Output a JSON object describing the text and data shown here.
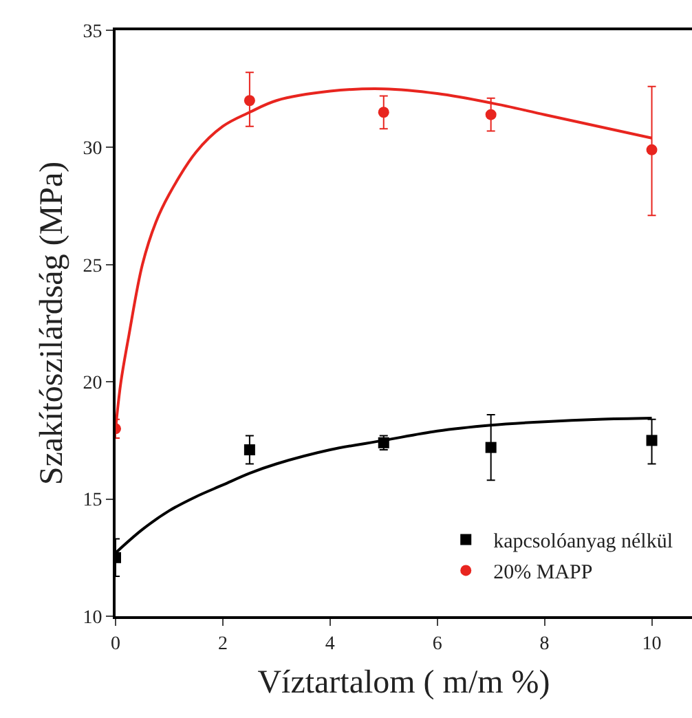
{
  "chart_data": {
    "type": "scatter",
    "xlabel": "Víztartalom ( m/m %)",
    "ylabel": "Szakítószilárdság (MPa)",
    "xlim": [
      0,
      10.75
    ],
    "xticks": [
      0,
      2,
      4,
      6,
      8,
      10
    ],
    "ylim": [
      10,
      35
    ],
    "yticks": [
      10,
      15,
      20,
      25,
      30,
      35
    ],
    "grid": false,
    "legend": "bottom right",
    "series": [
      {
        "name": "kapcsolóanyag nélkül",
        "color": "#000000",
        "marker": "square",
        "x": [
          0,
          2.5,
          5,
          7,
          10
        ],
        "values": [
          12.5,
          17.1,
          17.4,
          17.2,
          17.5
        ],
        "errors": [
          [
            11.7,
            13.3
          ],
          [
            16.5,
            17.7
          ],
          [
            17.1,
            17.7
          ],
          [
            15.8,
            18.6
          ],
          [
            16.5,
            18.4
          ]
        ]
      },
      {
        "name": "20% MAPP",
        "color": "#e8251f",
        "marker": "circle",
        "x": [
          0,
          2.5,
          5,
          7,
          10
        ],
        "values": [
          18.0,
          32.0,
          31.5,
          31.4,
          29.9
        ],
        "errors": [
          [
            17.6,
            18.4
          ],
          [
            30.9,
            33.2
          ],
          [
            30.8,
            32.2
          ],
          [
            30.7,
            32.1
          ],
          [
            27.1,
            32.6
          ]
        ]
      },
      {
        "type": "line",
        "color": "#000000",
        "marker": "none",
        "x": [
          0,
          0.5,
          1,
          1.5,
          2,
          2.5,
          3,
          4,
          5,
          6,
          7,
          8,
          9,
          10
        ],
        "values": [
          12.7,
          13.7,
          14.5,
          15.1,
          15.6,
          16.1,
          16.5,
          17.1,
          17.5,
          17.9,
          18.15,
          18.3,
          18.4,
          18.45
        ]
      },
      {
        "type": "line",
        "color": "#e8251f",
        "marker": "none",
        "x": [
          0,
          0.1,
          0.25,
          0.5,
          0.75,
          1,
          1.5,
          2,
          2.5,
          3,
          4,
          5,
          6,
          7,
          8,
          9,
          10
        ],
        "values": [
          18,
          20,
          22,
          25,
          26.8,
          28,
          29.8,
          30.9,
          31.5,
          32,
          32.4,
          32.5,
          32.3,
          31.9,
          31.4,
          30.9,
          30.4
        ]
      }
    ]
  }
}
